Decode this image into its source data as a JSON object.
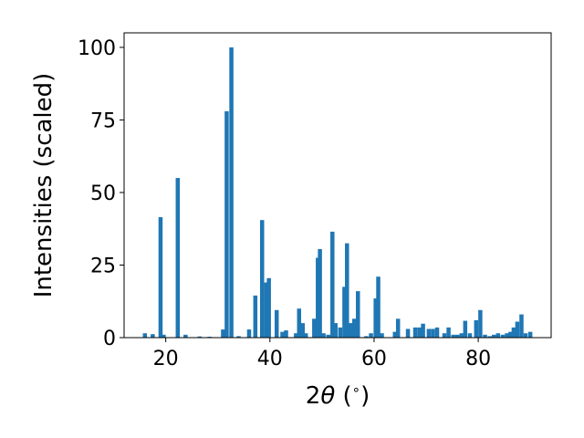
{
  "chart_data": {
    "type": "bar",
    "ylabel": "Intensities (scaled)",
    "xlabel_prefix": "2",
    "xlabel_symbol": "θ",
    "xlabel_suffix": " (",
    "xlabel_degree": "∘",
    "xlabel_close": ")",
    "xlim": [
      12,
      94
    ],
    "ylim": [
      0,
      105
    ],
    "xticks": [
      20,
      40,
      60,
      80
    ],
    "yticks": [
      0,
      25,
      50,
      75,
      100
    ],
    "bar_color": "#1f77b4",
    "grid": false,
    "x": [
      16.0,
      17.5,
      19.0,
      19.6,
      22.3,
      23.8,
      26.5,
      28.4,
      31.0,
      31.7,
      32.6,
      34.0,
      36.0,
      37.2,
      38.5,
      39.3,
      39.8,
      41.3,
      42.4,
      43.1,
      45.0,
      45.6,
      46.3,
      46.9,
      48.5,
      49.2,
      49.6,
      50.3,
      51.2,
      52.0,
      52.6,
      53.5,
      54.3,
      54.8,
      55.5,
      56.2,
      56.9,
      58.5,
      59.4,
      60.3,
      60.8,
      61.5,
      64.0,
      64.6,
      66.5,
      67.9,
      68.7,
      69.4,
      70.5,
      71.3,
      72.1,
      73.5,
      74.3,
      75.2,
      76.0,
      76.8,
      77.5,
      78.4,
      79.6,
      80.4,
      81.3,
      82.2,
      83.0,
      83.8,
      84.7,
      85.5,
      86.2,
      86.8,
      87.5,
      88.3,
      89.1,
      90.0
    ],
    "values": [
      1.5,
      1.2,
      41.5,
      1.0,
      55.0,
      1.0,
      0.4,
      0.3,
      2.8,
      78.0,
      100.0,
      0.5,
      2.8,
      14.5,
      40.5,
      19.0,
      20.5,
      9.5,
      2.0,
      2.5,
      1.5,
      10.0,
      5.0,
      1.5,
      6.5,
      27.5,
      30.5,
      1.5,
      1.0,
      36.5,
      5.0,
      3.5,
      17.5,
      32.5,
      5.0,
      6.5,
      16.0,
      0.5,
      1.5,
      13.5,
      21.0,
      1.5,
      2.0,
      6.5,
      3.0,
      3.5,
      3.5,
      4.8,
      3.0,
      3.0,
      3.5,
      1.5,
      3.5,
      1.0,
      1.0,
      1.5,
      5.8,
      1.5,
      6.0,
      9.5,
      1.0,
      0.5,
      1.0,
      1.5,
      1.0,
      1.5,
      2.0,
      3.5,
      5.5,
      8.0,
      1.5,
      2.0
    ]
  }
}
